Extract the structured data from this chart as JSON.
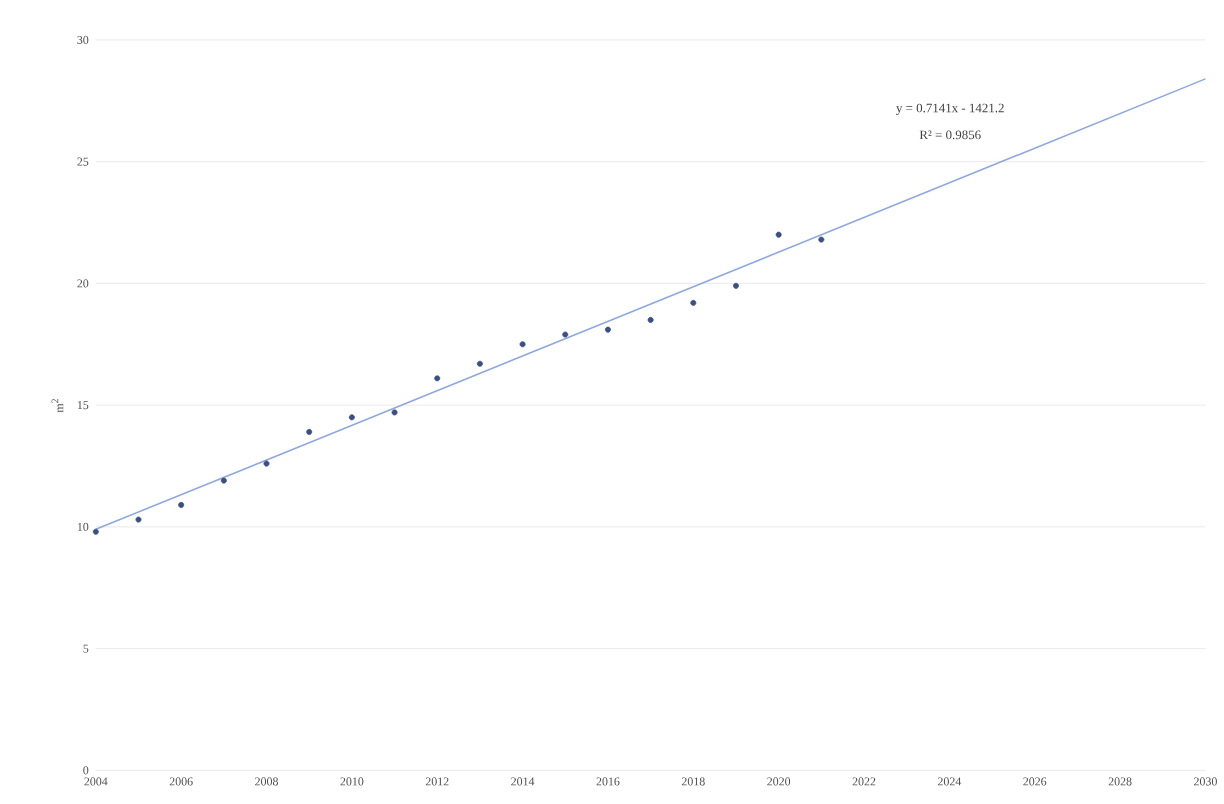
{
  "chart_data": {
    "type": "scatter",
    "ylabel": "m$^{2}$",
    "xlim": [
      2004,
      2030
    ],
    "xticks": [
      2004,
      2006,
      2008,
      2010,
      2012,
      2014,
      2016,
      2018,
      2020,
      2022,
      2024,
      2026,
      2028,
      2030
    ],
    "ylim": [
      0,
      30
    ],
    "yticks": [
      0,
      5,
      10,
      15,
      20,
      25,
      30
    ],
    "grid": "y",
    "annotations": [
      "y = 0.7141x - 1421.2",
      "R² = 0.9856"
    ],
    "series": [
      {
        "marker": "circle",
        "color": "#3b4f80",
        "x": [
          2004,
          2005,
          2006,
          2007,
          2008,
          2009,
          2010,
          2011,
          2012,
          2013,
          2014,
          2015,
          2016,
          2017,
          2018,
          2019,
          2020,
          2021
        ],
        "values": [
          9.8,
          10.3,
          10.9,
          11.9,
          12.6,
          13.9,
          14.5,
          14.7,
          16.1,
          16.7,
          17.5,
          17.9,
          18.1,
          18.5,
          19.2,
          19.9,
          22.0,
          21.8
        ]
      },
      {
        "type": "line",
        "marker": "none",
        "color": "#8fa8dc",
        "line_style": "solid",
        "x": [
          2004,
          2030
        ],
        "values": [
          9.9,
          28.4
        ]
      }
    ]
  }
}
